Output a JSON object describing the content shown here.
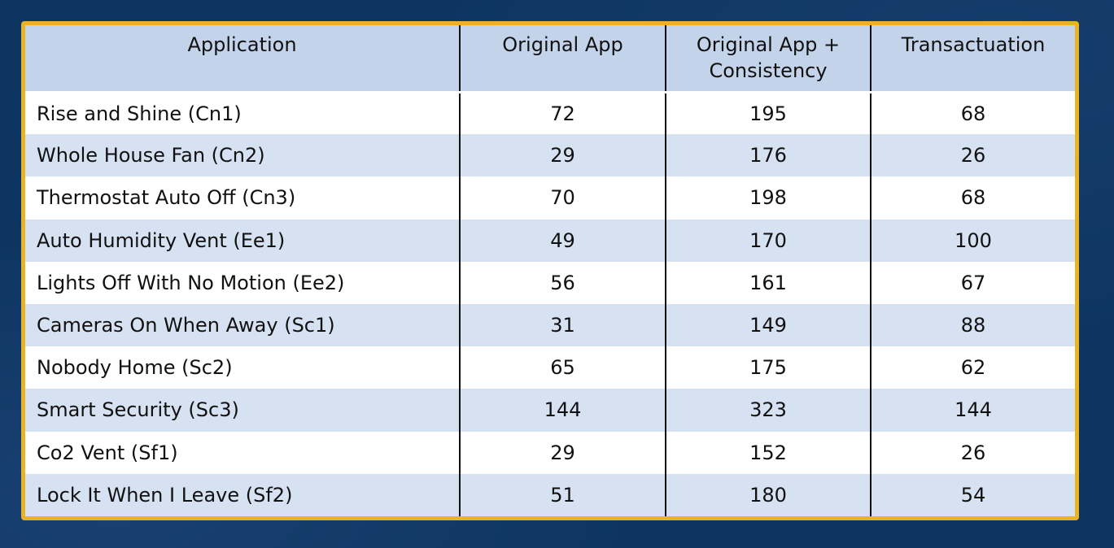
{
  "table": {
    "headers": [
      {
        "line1": "Application",
        "line2": ""
      },
      {
        "line1": "Original App",
        "line2": ""
      },
      {
        "line1": "Original App +",
        "line2": "Consistency"
      },
      {
        "line1": "Transactuation",
        "line2": ""
      }
    ],
    "rows": [
      {
        "app": "Rise and Shine (Cn1)",
        "original": "72",
        "consistency": "195",
        "transactuation": "68"
      },
      {
        "app": "Whole House Fan (Cn2)",
        "original": "29",
        "consistency": "176",
        "transactuation": "26"
      },
      {
        "app": "Thermostat Auto Off (Cn3)",
        "original": "70",
        "consistency": "198",
        "transactuation": "68"
      },
      {
        "app": "Auto Humidity Vent (Ee1)",
        "original": "49",
        "consistency": "170",
        "transactuation": "100"
      },
      {
        "app": "Lights Off With No Motion (Ee2)",
        "original": "56",
        "consistency": "161",
        "transactuation": "67"
      },
      {
        "app": "Cameras On When Away (Sc1)",
        "original": "31",
        "consistency": "149",
        "transactuation": "88"
      },
      {
        "app": "Nobody Home (Sc2)",
        "original": "65",
        "consistency": "175",
        "transactuation": "62"
      },
      {
        "app": "Smart Security (Sc3)",
        "original": "144",
        "consistency": "323",
        "transactuation": "144"
      },
      {
        "app": "Co2 Vent (Sf1)",
        "original": "29",
        "consistency": "152",
        "transactuation": "26"
      },
      {
        "app": "Lock It When I Leave (Sf2)",
        "original": "51",
        "consistency": "180",
        "transactuation": "54"
      }
    ]
  },
  "colors": {
    "background": "#0d3461",
    "frame_border": "#e8b324",
    "header_fill": "#c3d3ea",
    "band_fill": "#d6e1f1"
  }
}
